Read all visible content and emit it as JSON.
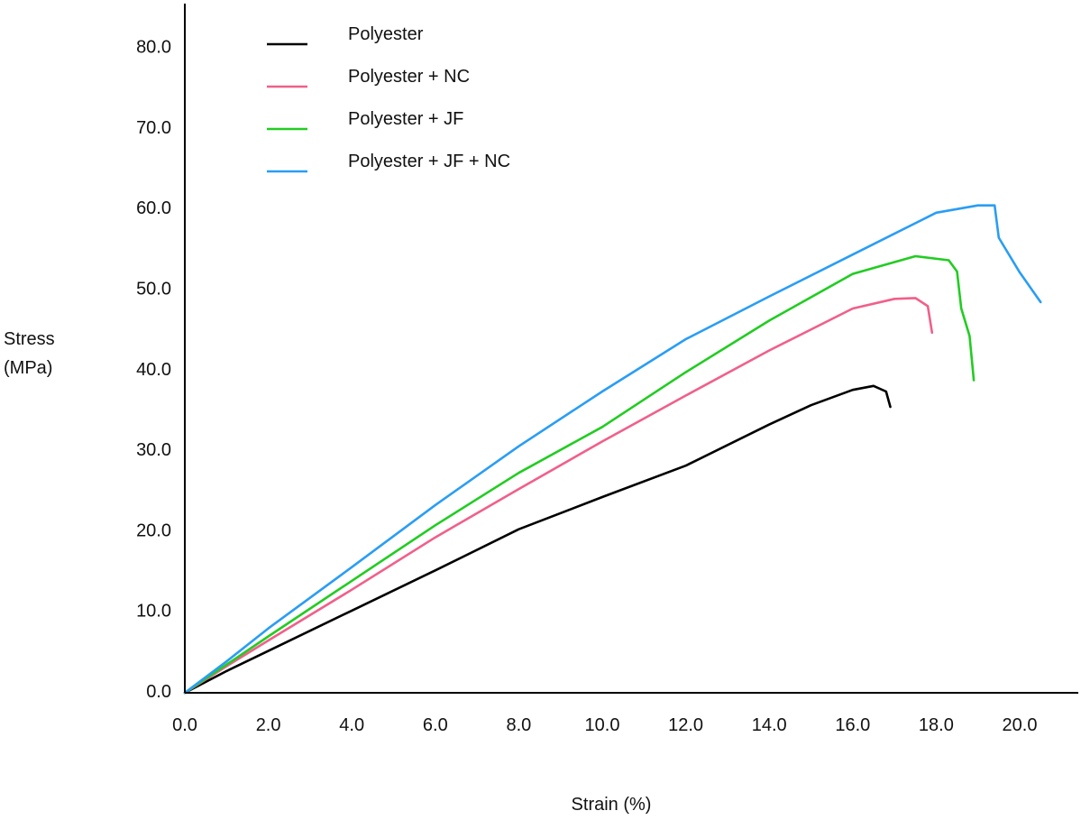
{
  "chart_data": {
    "type": "line",
    "title": "",
    "xlabel": "Strain (%)",
    "ylabel_lines": [
      "Stress",
      "(MPa)"
    ],
    "xlim": [
      0,
      21.6
    ],
    "ylim": [
      0,
      84
    ],
    "grid": false,
    "legend_position": "top-left",
    "x_ticks": [
      "0.0",
      "2.0",
      "4.0",
      "6.0",
      "8.0",
      "10.0",
      "12.0",
      "14.0",
      "16.0",
      "18.0",
      "20.0"
    ],
    "y_ticks": [
      "0.0",
      "10.0",
      "20.0",
      "30.0",
      "40.0",
      "50.0",
      "60.0",
      "70.0",
      "80.0"
    ],
    "series": [
      {
        "name": "Polyester",
        "color": "#000000",
        "points": [
          [
            0,
            0
          ],
          [
            1,
            2.7
          ],
          [
            2,
            5.2
          ],
          [
            4,
            10.2
          ],
          [
            6,
            15.2
          ],
          [
            8,
            20.3
          ],
          [
            10,
            24.3
          ],
          [
            12,
            28.2
          ],
          [
            14,
            33.3
          ],
          [
            15,
            35.7
          ],
          [
            16,
            37.6
          ],
          [
            16.5,
            38.1
          ],
          [
            16.8,
            37.4
          ],
          [
            16.9,
            35.5
          ]
        ]
      },
      {
        "name": "Polyester + NC",
        "color": "#f0608a",
        "points": [
          [
            0,
            0
          ],
          [
            1,
            3.3
          ],
          [
            2,
            6.5
          ],
          [
            4,
            12.8
          ],
          [
            6,
            19.3
          ],
          [
            8,
            25.3
          ],
          [
            10,
            31.2
          ],
          [
            12,
            36.9
          ],
          [
            14,
            42.5
          ],
          [
            16,
            47.7
          ],
          [
            17,
            48.9
          ],
          [
            17.5,
            49.0
          ],
          [
            17.8,
            48.0
          ],
          [
            17.9,
            44.7
          ]
        ]
      },
      {
        "name": "Polyester + JF",
        "color": "#22cc22",
        "points": [
          [
            0,
            0
          ],
          [
            1,
            3.5
          ],
          [
            2,
            7.0
          ],
          [
            4,
            13.9
          ],
          [
            6,
            20.8
          ],
          [
            8,
            27.3
          ],
          [
            10,
            33.0
          ],
          [
            12,
            39.8
          ],
          [
            14,
            46.2
          ],
          [
            16,
            52.0
          ],
          [
            17.5,
            54.2
          ],
          [
            18.3,
            53.7
          ],
          [
            18.5,
            52.3
          ],
          [
            18.6,
            47.7
          ],
          [
            18.8,
            44.3
          ],
          [
            18.9,
            38.8
          ]
        ]
      },
      {
        "name": "Polyester + JF + NC",
        "color": "#2a9df4",
        "points": [
          [
            0,
            0
          ],
          [
            1,
            3.9
          ],
          [
            2,
            8.0
          ],
          [
            4,
            15.6
          ],
          [
            6,
            23.3
          ],
          [
            8,
            30.6
          ],
          [
            10,
            37.4
          ],
          [
            12,
            43.9
          ],
          [
            14,
            49.2
          ],
          [
            16,
            54.4
          ],
          [
            18,
            59.6
          ],
          [
            19,
            60.5
          ],
          [
            19.4,
            60.5
          ],
          [
            19.5,
            56.5
          ],
          [
            20,
            52.2
          ],
          [
            20.5,
            48.5
          ]
        ]
      }
    ]
  }
}
